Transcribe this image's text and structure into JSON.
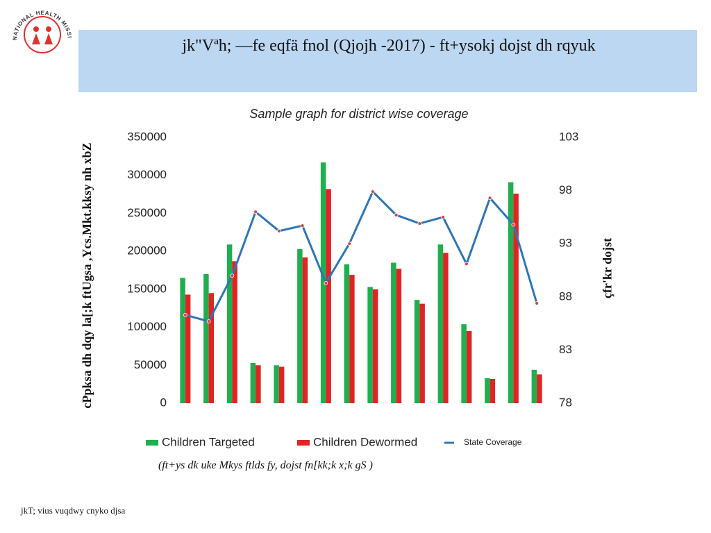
{
  "header": {
    "logo_text": "NATIONAL HEALTH MISSION",
    "title": "jk\"Vªh; —fe eqfä fnol (Qjojh  -2017) - ft+ysokj dojst dh rqyuk"
  },
  "chart_data": {
    "type": "bar",
    "title": "Sample graph for district wise coverage",
    "y_label": "cPpksa dh dqy la[;k ftUgsa ,Ycs.Mkt.kksy nh xbZ",
    "y2_label": "çfr'kr dojst",
    "categories": [
      null,
      null,
      null,
      null,
      null,
      null,
      null,
      null,
      null,
      null,
      null,
      null,
      null,
      null,
      null,
      null
    ],
    "series": [
      {
        "name": "Children Targeted",
        "color": "#1faf4f",
        "values": [
          165000,
          170000,
          209000,
          53000,
          50000,
          203000,
          317000,
          183000,
          153000,
          185000,
          136000,
          209000,
          104000,
          33000,
          291000,
          44000
        ]
      },
      {
        "name": "Children Dewormed",
        "color": "#e02424",
        "values": [
          143000,
          145000,
          187000,
          50000,
          48000,
          192000,
          282000,
          169000,
          150000,
          177000,
          131000,
          198000,
          95000,
          32000,
          276000,
          38000
        ]
      },
      {
        "name": "State Coverage",
        "type": "line",
        "axis": "y2",
        "color": "#2e75b6",
        "marker_color": "#e04040",
        "values": [
          86.3,
          85.7,
          90,
          96,
          94.2,
          94.7,
          89.3,
          93,
          97.9,
          95.7,
          94.9,
          95.5,
          91.1,
          97.3,
          94.8,
          87.4
        ]
      }
    ],
    "ylim": [
      0,
      350000
    ],
    "yticks": [
      0,
      50000,
      100000,
      150000,
      200000,
      250000,
      300000,
      350000
    ],
    "y2lim": [
      78,
      103
    ],
    "y2ticks": [
      78,
      83,
      88,
      93,
      98,
      103
    ],
    "legend": "bottom",
    "note": "(ft+ys dk uke Mkys ftlds fy, dojst fn[kk;k x;k gS )"
  },
  "footer": "jkT; vius vuqdwy cnyko djsa"
}
